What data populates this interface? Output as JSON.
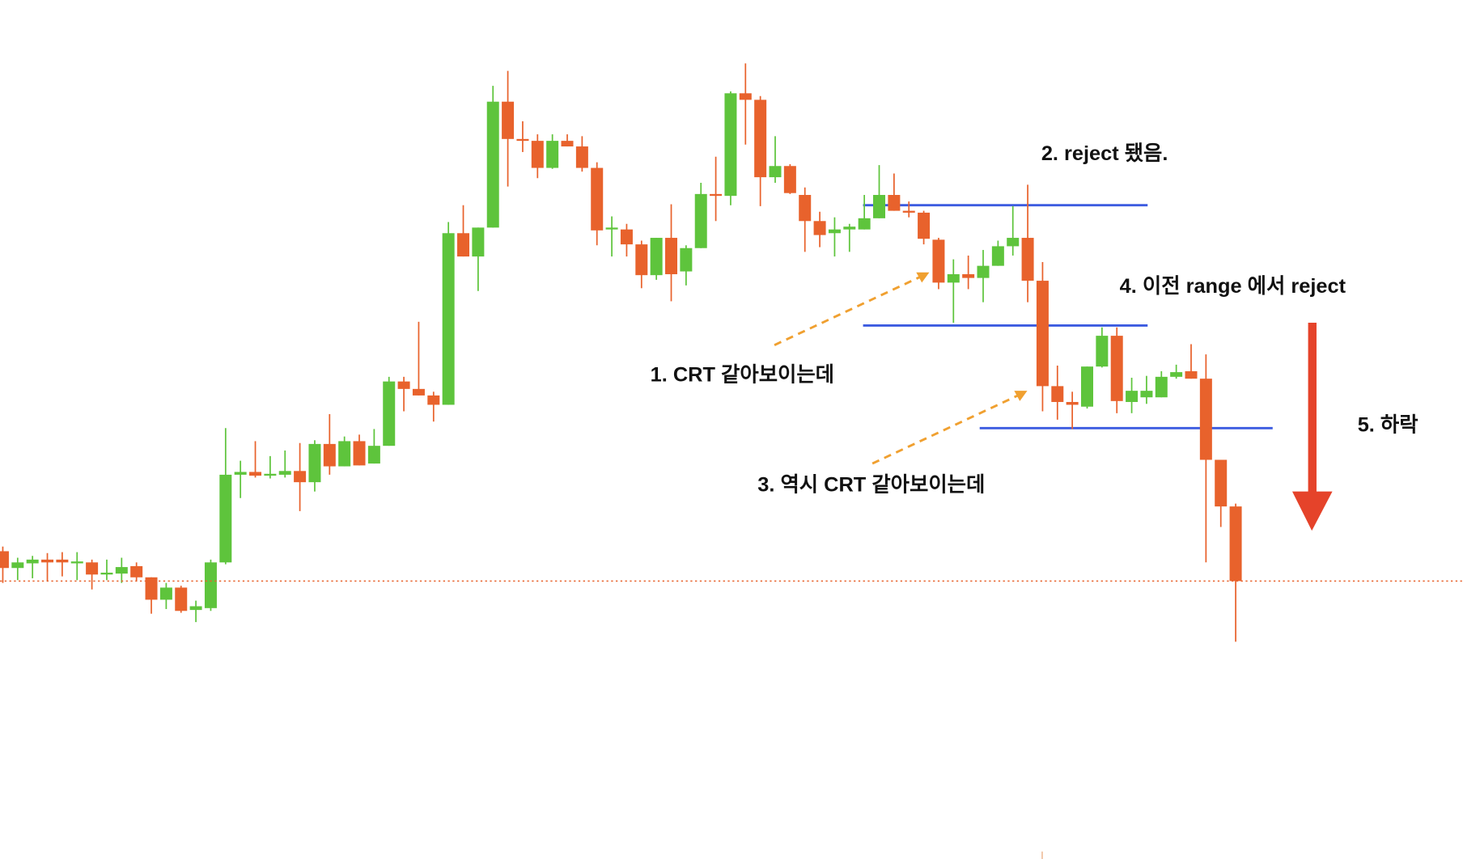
{
  "chart_data": {
    "type": "candlestick",
    "ylim": [
      0,
      921
    ],
    "up_color": "#5ec43c",
    "down_color": "#e8622c",
    "level_color": "#3b5be0",
    "last_price_color": "#e8622c",
    "open": [
      330,
      312,
      317,
      321,
      321,
      317,
      318,
      305,
      306,
      314,
      302,
      278,
      291,
      267,
      269,
      318,
      412,
      415,
      411,
      412,
      416,
      404,
      445,
      421,
      448,
      424,
      443,
      512,
      504,
      497,
      487,
      671,
      646,
      677,
      812,
      772,
      770,
      741,
      770,
      764,
      741,
      675,
      675,
      659,
      626,
      666,
      630,
      655,
      713,
      711,
      821,
      814,
      731,
      743,
      712,
      684,
      671,
      675,
      675,
      687,
      712,
      695,
      693,
      664,
      618,
      627,
      623,
      636,
      657,
      666,
      620,
      507,
      490,
      485,
      528,
      561,
      490,
      495,
      495,
      517,
      523,
      515,
      428,
      378
    ],
    "high": [
      335,
      323,
      325,
      328,
      329,
      329,
      321,
      321,
      323,
      318,
      302,
      296,
      293,
      277,
      321,
      462,
      427,
      448,
      432,
      438,
      446,
      449,
      477,
      453,
      455,
      461,
      517,
      517,
      576,
      501,
      683,
      701,
      677,
      829,
      845,
      791,
      777,
      777,
      777,
      775,
      747,
      689,
      681,
      663,
      666,
      702,
      658,
      725,
      753,
      823,
      853,
      818,
      775,
      745,
      720,
      694,
      688,
      681,
      712,
      744,
      735,
      705,
      695,
      666,
      643,
      647,
      653,
      663,
      700,
      723,
      640,
      529,
      501,
      528,
      570,
      570,
      516,
      518,
      523,
      530,
      552,
      541,
      428,
      381
    ],
    "low": [
      296,
      299,
      301,
      298,
      303,
      299,
      289,
      299,
      296,
      298,
      263,
      268,
      264,
      254,
      266,
      316,
      387,
      409,
      408,
      409,
      373,
      394,
      412,
      421,
      422,
      424,
      443,
      480,
      497,
      469,
      487,
      646,
      609,
      677,
      721,
      758,
      730,
      740,
      764,
      737,
      658,
      646,
      646,
      612,
      621,
      598,
      615,
      655,
      684,
      701,
      766,
      700,
      725,
      713,
      651,
      656,
      646,
      651,
      675,
      687,
      695,
      688,
      659,
      611,
      575,
      611,
      597,
      636,
      647,
      597,
      480,
      471,
      461,
      483,
      527,
      478,
      478,
      488,
      495,
      515,
      515,
      318,
      356,
      233
    ],
    "close": [
      312,
      318,
      321,
      318,
      318,
      319,
      305,
      307,
      313,
      302,
      278,
      291,
      266,
      271,
      318,
      412,
      415,
      411,
      413,
      416,
      404,
      445,
      421,
      448,
      422,
      443,
      512,
      504,
      497,
      487,
      671,
      646,
      677,
      812,
      772,
      770,
      741,
      770,
      764,
      741,
      674,
      677,
      659,
      626,
      666,
      627,
      655,
      713,
      711,
      821,
      814,
      731,
      743,
      714,
      684,
      669,
      675,
      678,
      687,
      712,
      695,
      693,
      665,
      618,
      627,
      623,
      636,
      657,
      666,
      620,
      507,
      490,
      487,
      528,
      561,
      491,
      502,
      502,
      517,
      522,
      515,
      428,
      378,
      298
    ],
    "levels": [
      701,
      572,
      462
    ],
    "annotations": [
      "2. reject 됐음.",
      "4. 이전 range 에서 reject",
      "1. CRT 같아보이는데",
      "5. 하락",
      "3. 역시 CRT 같아보이는데"
    ]
  }
}
